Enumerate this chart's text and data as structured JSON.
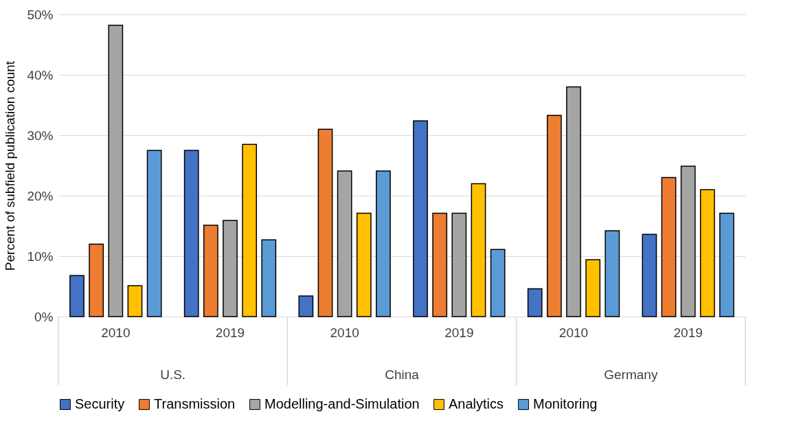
{
  "chart_data": {
    "type": "bar",
    "ylabel": "Percent of subfield publication count",
    "categories": [
      "2010",
      "2019",
      "2010",
      "2019",
      "2010",
      "2019"
    ],
    "annotations": [
      "U.S.",
      "China",
      "Germany"
    ],
    "series": [
      {
        "name": "Security",
        "color": "#4472c4",
        "values": [
          6.8,
          27.5,
          3.4,
          32.4,
          4.6,
          13.6
        ]
      },
      {
        "name": "Transmission",
        "color": "#ed7d31",
        "values": [
          12.0,
          15.1,
          31.0,
          17.1,
          33.3,
          23.0
        ]
      },
      {
        "name": "Modelling-and-Simulation",
        "color": "#a5a5a5",
        "values": [
          48.2,
          15.9,
          24.1,
          17.1,
          38.0,
          24.9
        ]
      },
      {
        "name": "Analytics",
        "color": "#ffc000",
        "values": [
          5.1,
          28.5,
          17.1,
          22.0,
          9.4,
          21.0
        ]
      },
      {
        "name": "Monitoring",
        "color": "#5b9bd5",
        "values": [
          27.5,
          12.7,
          24.1,
          11.1,
          14.2,
          17.1
        ]
      }
    ],
    "ylim": [
      0,
      50
    ],
    "yticks": [
      {
        "value": 0,
        "label": "0%"
      },
      {
        "value": 10,
        "label": "10%"
      },
      {
        "value": 20,
        "label": "20%"
      },
      {
        "value": 30,
        "label": "30%"
      },
      {
        "value": 40,
        "label": "40%"
      },
      {
        "value": 50,
        "label": "50%"
      }
    ],
    "grid": "y",
    "legend": "bottom"
  }
}
